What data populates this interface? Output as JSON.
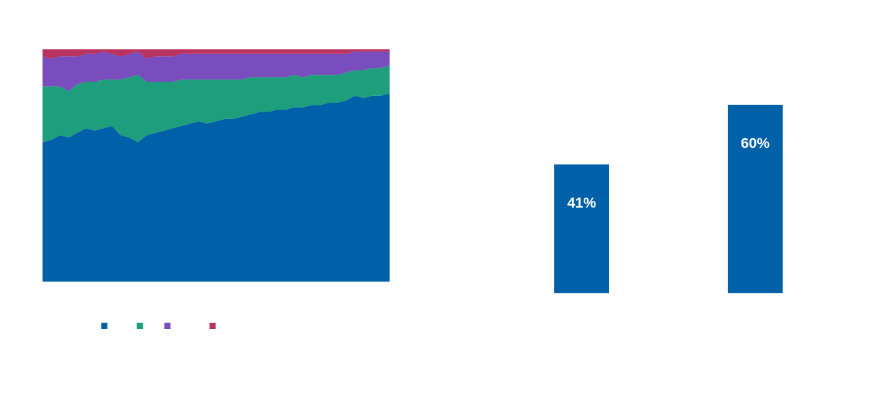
{
  "colors": {
    "blue": "#0060A8",
    "green": "#1F9E7D",
    "purple": "#7A4DBE",
    "red": "#B8345F",
    "bar": "#0060A8",
    "bar_label": "#FFFFFF",
    "background": "#FFFFFF"
  },
  "chart_data": [
    {
      "type": "area",
      "stacked": true,
      "normalized_to": 100,
      "x_count": 41,
      "legend_placement": "bottom",
      "grid": false,
      "series": [
        {
          "color_key": "blue",
          "values": [
            60,
            61,
            63,
            62,
            64,
            66,
            65,
            66,
            67,
            63,
            62,
            60,
            63,
            64,
            65,
            66,
            67,
            68,
            69,
            68,
            69,
            70,
            70,
            71,
            72,
            73,
            73,
            74,
            74,
            75,
            75,
            76,
            76,
            77,
            77,
            78,
            80,
            79,
            80,
            80,
            81
          ]
        },
        {
          "color_key": "green",
          "values": [
            24,
            23,
            21,
            20,
            21,
            20,
            21,
            21,
            20,
            24,
            26,
            29,
            23,
            22,
            21,
            20,
            20,
            19,
            18,
            19,
            18,
            17,
            17,
            16,
            16,
            15,
            15,
            14,
            14,
            14,
            13,
            13,
            13,
            12,
            12,
            12,
            11,
            12,
            12,
            12,
            12
          ]
        },
        {
          "color_key": "purple",
          "values": [
            13,
            12,
            13,
            15,
            12,
            12,
            12,
            12,
            11,
            10,
            10,
            10,
            10,
            11,
            11,
            11,
            11,
            11,
            11,
            11,
            11,
            11,
            11,
            11,
            10,
            10,
            10,
            10,
            10,
            9,
            10,
            9,
            9,
            9,
            9,
            8,
            8,
            8,
            7,
            7,
            6
          ]
        },
        {
          "color_key": "red",
          "values": [
            3,
            4,
            3,
            3,
            3,
            2,
            2,
            1,
            2,
            3,
            2,
            1,
            4,
            3,
            3,
            3,
            2,
            2,
            2,
            2,
            2,
            2,
            2,
            2,
            2,
            2,
            2,
            2,
            2,
            2,
            2,
            2,
            2,
            2,
            2,
            2,
            1,
            1,
            1,
            1,
            1
          ]
        }
      ],
      "legend": [
        {
          "color_key": "blue",
          "label": ""
        },
        {
          "color_key": "green",
          "label": ""
        },
        {
          "color_key": "purple",
          "label": ""
        },
        {
          "color_key": "red",
          "label": ""
        }
      ]
    },
    {
      "type": "bar",
      "categories": [
        "",
        ""
      ],
      "values": [
        41,
        60
      ],
      "data_labels": [
        "41%",
        "60%"
      ],
      "ylim": [
        0,
        100
      ]
    }
  ]
}
